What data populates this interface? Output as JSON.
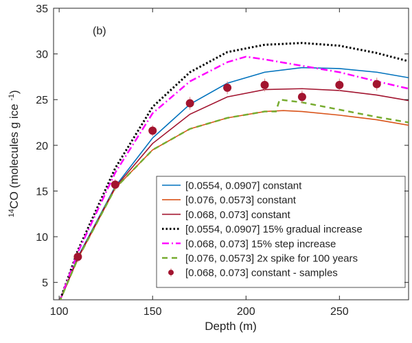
{
  "chart_data": {
    "type": "line",
    "annotation": "(b)",
    "xlabel": "Depth (m)",
    "ylabel": [
      "14",
      "CO (molecules g ice ",
      "-1",
      ")"
    ],
    "xlim": [
      97,
      287
    ],
    "xticks": [
      100,
      150,
      200,
      250
    ],
    "ylim": [
      3.1,
      35
    ],
    "yticks": [
      5,
      10,
      15,
      20,
      25,
      30,
      35
    ],
    "legend": "lower right",
    "series": [
      {
        "name": "[0.0554, 0.0907] constant",
        "color": "#0072bd",
        "style": "solid",
        "x": [
          100,
          110,
          130,
          150,
          170,
          190,
          210,
          230,
          250,
          270,
          287
        ],
        "values": [
          2.8,
          7.8,
          15.5,
          20.8,
          24.5,
          26.8,
          28.0,
          28.5,
          28.4,
          28.0,
          27.4
        ]
      },
      {
        "name": "[0.076, 0.0573] constant",
        "color": "#d95319",
        "style": "solid",
        "x": [
          100,
          110,
          130,
          150,
          170,
          190,
          210,
          220,
          230,
          250,
          270,
          287
        ],
        "values": [
          2.8,
          7.6,
          15.3,
          19.5,
          21.8,
          23.0,
          23.7,
          23.8,
          23.7,
          23.3,
          22.8,
          22.2
        ]
      },
      {
        "name": "[0.068, 0.073] constant",
        "color": "#a2142f",
        "style": "solid",
        "x": [
          100,
          110,
          130,
          150,
          170,
          190,
          210,
          230,
          250,
          270,
          287
        ],
        "values": [
          2.8,
          7.7,
          15.4,
          20.2,
          23.4,
          25.3,
          26.1,
          26.2,
          26.0,
          25.5,
          24.9
        ]
      },
      {
        "name": "[0.0554, 0.0907] 15% gradual increase",
        "color": "#000000",
        "style": "dotted",
        "x": [
          100,
          110,
          130,
          150,
          170,
          190,
          210,
          230,
          250,
          270,
          287
        ],
        "values": [
          2.8,
          8.5,
          17.5,
          24.2,
          28.0,
          30.2,
          31.0,
          31.2,
          30.9,
          30.1,
          29.2
        ]
      },
      {
        "name": "[0.068, 0.073] 15% step increase",
        "color": "#ff00ff",
        "style": "dashdot",
        "x": [
          100,
          110,
          130,
          150,
          170,
          190,
          200,
          210,
          230,
          250,
          270,
          287
        ],
        "values": [
          2.8,
          8.3,
          17.0,
          23.5,
          27.0,
          29.1,
          29.7,
          29.4,
          28.7,
          28.0,
          27.0,
          26.2
        ]
      },
      {
        "name": "[0.076, 0.0573] 2x spike for 100 years",
        "color": "#77ac30",
        "style": "dashed",
        "x": [
          100,
          110,
          130,
          150,
          170,
          190,
          210,
          216,
          218,
          230,
          250,
          270,
          287
        ],
        "values": [
          2.8,
          7.6,
          15.3,
          19.5,
          21.8,
          23.0,
          23.7,
          23.7,
          25.0,
          24.7,
          23.9,
          23.1,
          22.5
        ]
      },
      {
        "name": "[0.068, 0.073] constant - samples",
        "color": "#a2142f",
        "style": "points",
        "x": [
          110,
          130,
          150,
          170,
          190,
          210,
          230,
          250,
          270
        ],
        "values": [
          7.8,
          15.7,
          21.6,
          24.6,
          26.3,
          26.6,
          25.3,
          26.6,
          26.7
        ],
        "errors": [
          0.6,
          0.6,
          0.6,
          0.7,
          0.7,
          0.7,
          0.7,
          0.7,
          0.7
        ]
      }
    ]
  }
}
